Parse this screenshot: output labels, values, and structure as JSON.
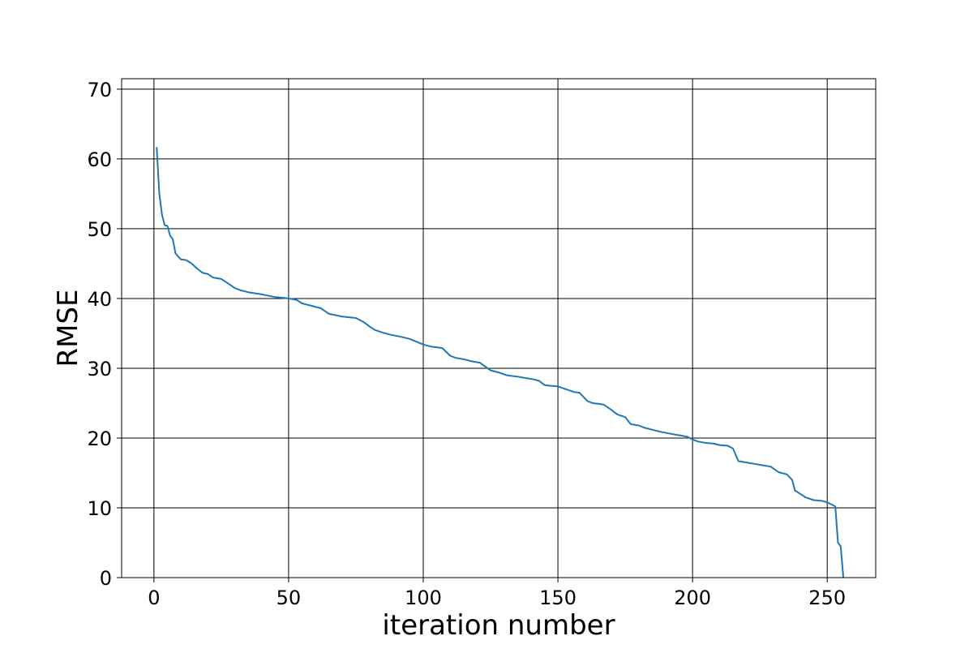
{
  "chart_data": {
    "type": "line",
    "title": "",
    "xlabel": "iteration number",
    "ylabel": "RMSE",
    "xlim": [
      -12,
      268
    ],
    "ylim": [
      0,
      71.5
    ],
    "xticks": [
      0,
      50,
      100,
      150,
      200,
      250
    ],
    "yticks": [
      0,
      10,
      20,
      30,
      40,
      50,
      60,
      70
    ],
    "grid": true,
    "legend": "none",
    "series": [
      {
        "color": "#1f77b4",
        "x": [
          1,
          2,
          3,
          4,
          5,
          6,
          7,
          8,
          9,
          10,
          12,
          14,
          16,
          18,
          20,
          22,
          25,
          27,
          30,
          32,
          35,
          40,
          45,
          48,
          50,
          53,
          55,
          58,
          62,
          65,
          70,
          75,
          78,
          80,
          82,
          85,
          88,
          92,
          95,
          100,
          103,
          107,
          110,
          112,
          115,
          118,
          121,
          125,
          128,
          131,
          135,
          138,
          141,
          143,
          145,
          147,
          150,
          153,
          156,
          158,
          161,
          163,
          165,
          167,
          170,
          172,
          175,
          177,
          180,
          182,
          185,
          188,
          192,
          195,
          198,
          200,
          202,
          205,
          208,
          210,
          213,
          215,
          217,
          220,
          223,
          226,
          229,
          232,
          235,
          237,
          238,
          240,
          242,
          245,
          248,
          250,
          253,
          254,
          255,
          256
        ],
        "y": [
          61.7,
          55.0,
          52.0,
          50.5,
          50.4,
          49.0,
          48.5,
          46.5,
          46.0,
          45.6,
          45.5,
          45.0,
          44.3,
          43.7,
          43.5,
          43.0,
          42.8,
          42.3,
          41.5,
          41.2,
          40.9,
          40.6,
          40.2,
          40.1,
          40.0,
          39.8,
          39.3,
          39.0,
          38.6,
          37.8,
          37.4,
          37.2,
          36.6,
          36.0,
          35.5,
          35.1,
          34.8,
          34.5,
          34.2,
          33.4,
          33.1,
          32.9,
          31.8,
          31.5,
          31.3,
          31.0,
          30.8,
          29.7,
          29.4,
          29.0,
          28.8,
          28.6,
          28.4,
          28.2,
          27.6,
          27.5,
          27.4,
          27.0,
          26.6,
          26.5,
          25.3,
          25.0,
          24.9,
          24.8,
          24.0,
          23.4,
          23.0,
          22.0,
          21.8,
          21.5,
          21.2,
          20.9,
          20.6,
          20.4,
          20.2,
          19.8,
          19.5,
          19.3,
          19.2,
          19.0,
          18.9,
          18.5,
          16.7,
          16.5,
          16.3,
          16.1,
          15.9,
          15.1,
          14.8,
          14.0,
          12.5,
          12.0,
          11.5,
          11.1,
          11.0,
          10.8,
          10.2,
          5.0,
          4.5,
          0.0
        ]
      }
    ]
  }
}
